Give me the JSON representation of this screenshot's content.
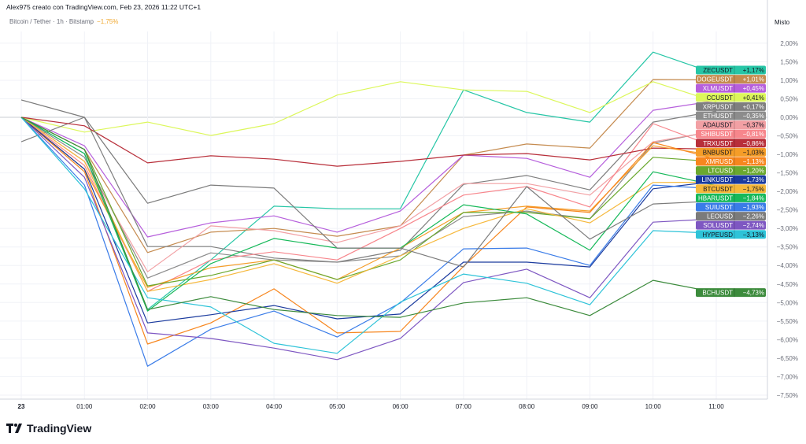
{
  "header": {
    "credit": "Alex975 creato con TradingView.com, Feb 23, 2026 11:22 UTC+1",
    "symbol": "Bitcoin / Tether · 1h · Bitstamp",
    "change": "−1,75%"
  },
  "axis_mode": "Misto",
  "logo": "TradingView",
  "chart_data": {
    "type": "line",
    "x": [
      "23",
      "01:00",
      "02:00",
      "03:00",
      "04:00",
      "05:00",
      "06:00",
      "07:00",
      "08:00",
      "09:00",
      "10:00",
      "11:00"
    ],
    "ylabel": "",
    "ylim": [
      -7.5,
      2.5
    ],
    "yticks": [
      "2,00%",
      "1,50%",
      "1,00%",
      "0,50%",
      "0,00%",
      "−0,50%",
      "−1,00%",
      "−1,50%",
      "−2,00%",
      "−2,50%",
      "−3,00%",
      "−3,50%",
      "−4,00%",
      "−4,50%",
      "−5,00%",
      "−5,50%",
      "−6,00%",
      "−6,50%",
      "−7,00%",
      "−7,50%"
    ],
    "ytick_values": [
      2,
      1.5,
      1,
      0.5,
      0,
      -0.5,
      -1,
      -1.5,
      -2,
      -2.5,
      -3,
      -3.5,
      -4,
      -4.5,
      -5,
      -5.5,
      -6,
      -6.5,
      -7,
      -7.5
    ],
    "grid": true,
    "series": [
      {
        "name": "ZECUSDT",
        "label": "+1,17%",
        "color": "#26c6a6",
        "dark": true,
        "values": [
          0,
          -0.98,
          -5.19,
          -3.85,
          -2.4,
          -2.47,
          -2.47,
          0.74,
          0.13,
          -0.13,
          1.76,
          1.17
        ]
      },
      {
        "name": "DOGEUSDT",
        "label": "+1,01%",
        "color": "#c58b4f",
        "dark": false,
        "values": [
          0,
          -0.87,
          -3.65,
          -3.1,
          -3.0,
          -3.21,
          -2.93,
          -1.02,
          -0.72,
          -0.83,
          1.02,
          1.01
        ]
      },
      {
        "name": "XLMUSDT",
        "label": "+0,45%",
        "color": "#b65fdc",
        "dark": false,
        "values": [
          0,
          -0.77,
          -3.23,
          -2.85,
          -2.66,
          -3.1,
          -2.53,
          -1.02,
          -1.11,
          -1.62,
          0.19,
          0.45
        ]
      },
      {
        "name": "CCUSDT",
        "label": "+0,41%",
        "color": "#dcf75a",
        "dark": true,
        "values": [
          0,
          -0.4,
          -0.13,
          -0.49,
          -0.17,
          0.6,
          0.96,
          0.74,
          0.7,
          0.13,
          0.96,
          0.41
        ]
      },
      {
        "name": "XRPUSDT",
        "label": "+0,17%",
        "color": "#7f7f7f",
        "dark": false,
        "values": [
          -0.66,
          0,
          -3.49,
          -3.49,
          -3.8,
          -3.91,
          -3.59,
          -1.81,
          -1.57,
          -1.96,
          -0.13,
          0.17
        ]
      },
      {
        "name": "ETHUSDT",
        "label": "−0,35%",
        "color": "#8c8c8c",
        "dark": false,
        "values": [
          0,
          -1.08,
          -4.34,
          -3.66,
          -3.85,
          -3.91,
          -3.74,
          -2.68,
          -2.53,
          -2.74,
          -0.7,
          -0.35
        ]
      },
      {
        "name": "ADAUSDT",
        "label": "−0,37%",
        "color": "#f2a0a4",
        "dark": true,
        "values": [
          0,
          -1.19,
          -4.17,
          -2.93,
          -3.06,
          -3.38,
          -2.93,
          -1.79,
          -1.79,
          -2.1,
          -0.66,
          -0.37
        ]
      },
      {
        "name": "SHIBUSDT",
        "label": "−0,81%",
        "color": "#f7868c",
        "dark": false,
        "values": [
          0,
          -1.3,
          -4.7,
          -3.85,
          -3.63,
          -3.85,
          -3.0,
          -2.1,
          -1.87,
          -2.42,
          -0.17,
          -0.81
        ]
      },
      {
        "name": "TRXUSDT",
        "label": "−0,86%",
        "color": "#b82f3a",
        "dark": false,
        "values": [
          0,
          -0.23,
          -1.23,
          -1.04,
          -1.13,
          -1.32,
          -1.19,
          -1.02,
          -0.98,
          -1.15,
          -0.83,
          -0.86
        ]
      },
      {
        "name": "BNBUSDT",
        "label": "−1,03%",
        "color": "#f59d28",
        "dark": true,
        "values": [
          0,
          -1.4,
          -4.59,
          -4.06,
          -3.85,
          -4.38,
          -3.53,
          -2.57,
          -2.4,
          -2.53,
          -0.77,
          -1.03
        ]
      },
      {
        "name": "XMRUSD",
        "label": "−1,13%",
        "color": "#f7861e",
        "dark": false,
        "values": [
          0,
          -1.47,
          -6.12,
          -5.55,
          -4.63,
          -5.82,
          -5.78,
          -4.02,
          -2.42,
          -2.57,
          -0.68,
          -1.13
        ]
      },
      {
        "name": "LTCUSD",
        "label": "−1,20%",
        "color": "#6aa82e",
        "dark": false,
        "values": [
          0,
          -0.87,
          -4.55,
          -4.27,
          -3.85,
          -4.38,
          -3.85,
          -2.57,
          -2.57,
          -2.74,
          -1.08,
          -1.2
        ]
      },
      {
        "name": "LINKUSDT",
        "label": "−1,73%",
        "color": "#1b3b9e",
        "dark": false,
        "values": [
          0,
          -1.4,
          -5.55,
          -5.33,
          -5.08,
          -5.44,
          -5.31,
          -3.91,
          -3.91,
          -4.04,
          -1.93,
          -1.73
        ]
      },
      {
        "name": "BTCUSDT",
        "label": "−1,75%",
        "color": "#f6b83b",
        "dark": true,
        "values": [
          0,
          -1.19,
          -4.7,
          -4.38,
          -3.95,
          -4.48,
          -3.74,
          -3.0,
          -2.47,
          -2.85,
          -1.76,
          -1.75
        ]
      },
      {
        "name": "HBARUSDT",
        "label": "−1,84%",
        "color": "#17b95a",
        "dark": false,
        "values": [
          0,
          -0.98,
          -5.23,
          -3.95,
          -3.27,
          -3.53,
          -3.53,
          -2.36,
          -2.61,
          -3.59,
          -1.47,
          -1.84
        ]
      },
      {
        "name": "SUIUSDT",
        "label": "−1,93%",
        "color": "#3a7ce8",
        "dark": false,
        "values": [
          0,
          -1.83,
          -6.72,
          -5.72,
          -5.23,
          -5.93,
          -5.01,
          -3.55,
          -3.53,
          -4.0,
          -1.83,
          -1.93
        ]
      },
      {
        "name": "LEOUSD",
        "label": "−2,26%",
        "color": "#7b7b7b",
        "dark": false,
        "values": [
          0.47,
          0,
          -2.32,
          -1.83,
          -1.91,
          -3.53,
          -3.53,
          -4.04,
          -1.87,
          -3.29,
          -2.34,
          -2.26
        ]
      },
      {
        "name": "SOLUSDT",
        "label": "−2,74%",
        "color": "#7e57c2",
        "dark": false,
        "values": [
          0,
          -1.62,
          -5.82,
          -5.97,
          -6.23,
          -6.54,
          -5.97,
          -4.46,
          -4.1,
          -4.87,
          -2.83,
          -2.74
        ]
      },
      {
        "name": "HYPEUSD",
        "label": "−3,13%",
        "color": "#2ec3d8",
        "dark": true,
        "values": [
          0,
          -1.93,
          -4.87,
          -5.12,
          -6.1,
          -6.37,
          -4.99,
          -4.23,
          -4.48,
          -5.06,
          -3.06,
          -3.13
        ]
      },
      {
        "name": "BCHUSDT",
        "label": "−4,73%",
        "color": "#3c8b3c",
        "dark": false,
        "values": [
          0,
          -0.87,
          -5.19,
          -4.84,
          -5.19,
          -5.35,
          -5.4,
          -5.01,
          -4.87,
          -5.35,
          -4.4,
          -4.73
        ]
      }
    ]
  }
}
